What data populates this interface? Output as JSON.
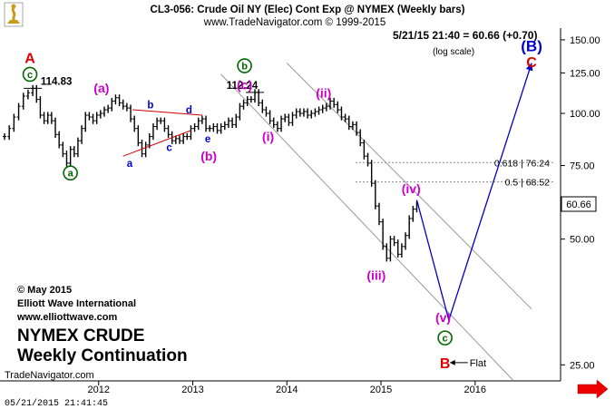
{
  "header": {
    "title": "CL3-056:  Crude Oil NY (Elec) Cont Exp @ NYMEX  (Weekly bars)",
    "copyright": "www.TradeNavigator.com © 1999-2015",
    "last_quote": "5/21/15 21:40 = 60.66 (+0.70)",
    "scale_note": "(log scale)"
  },
  "price_tag": "60.66",
  "footer": {
    "watermark": "TradeNavigator.com",
    "timestamp": "05/21/2015 21:41:45"
  },
  "credits": {
    "line1": "© May 2015",
    "line2": "Elliott Wave International",
    "line3": "www.elliottwave.com"
  },
  "caption": {
    "line1": "NYMEX CRUDE",
    "line2": "Weekly Continuation"
  },
  "colors": {
    "price_bars": "#000000",
    "projection": "#0000cc",
    "channel": "#999999",
    "triangle": "#cc0000",
    "green_label": "#006600",
    "magenta_label": "#cc00cc",
    "blue_label": "#0000cc",
    "red_label": "#dd0000",
    "nav_arrow": "#ee0000"
  },
  "chart_data": {
    "type": "line",
    "title": "CL3-056:  Crude Oil NY (Elec) Cont Exp @ NYMEX  (Weekly bars)",
    "log_scale": true,
    "ylim": [
      23,
      160
    ],
    "xlim": [
      2011.0,
      2016.85
    ],
    "y_ticks": [
      {
        "value": 150,
        "label": "150.00"
      },
      {
        "value": 125,
        "label": "125.00"
      },
      {
        "value": 100,
        "label": "100.00"
      },
      {
        "value": 75,
        "label": "75.00"
      },
      {
        "value": 50,
        "label": "50.00"
      },
      {
        "value": 25,
        "label": "25.00"
      }
    ],
    "x_ticks": [
      {
        "value": 2012,
        "label": "2012"
      },
      {
        "value": 2013,
        "label": "2013"
      },
      {
        "value": 2014,
        "label": "2014"
      },
      {
        "value": 2015,
        "label": "2015"
      },
      {
        "value": 2016,
        "label": "2016"
      }
    ],
    "series": [
      {
        "values": [
          [
            2011.0,
            88
          ],
          [
            2011.05,
            92
          ],
          [
            2011.1,
            98
          ],
          [
            2011.15,
            104
          ],
          [
            2011.2,
            110
          ],
          [
            2011.25,
            112
          ],
          [
            2011.3,
            114.83
          ],
          [
            2011.34,
            108
          ],
          [
            2011.38,
            99
          ],
          [
            2011.42,
            96
          ],
          [
            2011.46,
            99
          ],
          [
            2011.5,
            96
          ],
          [
            2011.54,
            89
          ],
          [
            2011.58,
            84
          ],
          [
            2011.62,
            80
          ],
          [
            2011.66,
            76
          ],
          [
            2011.7,
            82
          ],
          [
            2011.74,
            80
          ],
          [
            2011.78,
            86
          ],
          [
            2011.82,
            92
          ],
          [
            2011.86,
            99
          ],
          [
            2011.9,
            98
          ],
          [
            2011.94,
            96
          ],
          [
            2011.98,
            99
          ],
          [
            2012.02,
            100
          ],
          [
            2012.06,
            102
          ],
          [
            2012.1,
            103
          ],
          [
            2012.14,
            107
          ],
          [
            2012.18,
            109
          ],
          [
            2012.22,
            106
          ],
          [
            2012.26,
            104
          ],
          [
            2012.3,
            103
          ],
          [
            2012.34,
            97
          ],
          [
            2012.38,
            92
          ],
          [
            2012.42,
            85
          ],
          [
            2012.46,
            80
          ],
          [
            2012.5,
            84
          ],
          [
            2012.54,
            88
          ],
          [
            2012.58,
            93
          ],
          [
            2012.62,
            96
          ],
          [
            2012.66,
            96
          ],
          [
            2012.7,
            92
          ],
          [
            2012.74,
            89
          ],
          [
            2012.78,
            86
          ],
          [
            2012.82,
            87
          ],
          [
            2012.86,
            86
          ],
          [
            2012.9,
            88
          ],
          [
            2012.94,
            88
          ],
          [
            2012.98,
            92
          ],
          [
            2013.02,
            93
          ],
          [
            2013.06,
            96
          ],
          [
            2013.1,
            97
          ],
          [
            2013.14,
            92
          ],
          [
            2013.18,
            92
          ],
          [
            2013.22,
            93
          ],
          [
            2013.26,
            91
          ],
          [
            2013.3,
            93
          ],
          [
            2013.34,
            94
          ],
          [
            2013.38,
            96
          ],
          [
            2013.42,
            94
          ],
          [
            2013.46,
            98
          ],
          [
            2013.5,
            104
          ],
          [
            2013.54,
            106
          ],
          [
            2013.58,
            108
          ],
          [
            2013.62,
            108
          ],
          [
            2013.66,
            112.24
          ],
          [
            2013.7,
            106
          ],
          [
            2013.74,
            102
          ],
          [
            2013.78,
            100
          ],
          [
            2013.82,
            96
          ],
          [
            2013.86,
            94
          ],
          [
            2013.9,
            92
          ],
          [
            2013.94,
            97
          ],
          [
            2013.98,
            98
          ],
          [
            2014.02,
            95
          ],
          [
            2014.06,
            99
          ],
          [
            2014.1,
            101
          ],
          [
            2014.14,
            100
          ],
          [
            2014.18,
            101
          ],
          [
            2014.22,
            99
          ],
          [
            2014.26,
            100
          ],
          [
            2014.3,
            101
          ],
          [
            2014.34,
            102
          ],
          [
            2014.38,
            103
          ],
          [
            2014.42,
            104
          ],
          [
            2014.46,
            107
          ],
          [
            2014.5,
            105
          ],
          [
            2014.54,
            102
          ],
          [
            2014.58,
            98
          ],
          [
            2014.62,
            97
          ],
          [
            2014.66,
            93
          ],
          [
            2014.7,
            94
          ],
          [
            2014.74,
            90
          ],
          [
            2014.78,
            85
          ],
          [
            2014.82,
            79
          ],
          [
            2014.86,
            76
          ],
          [
            2014.9,
            68
          ],
          [
            2014.94,
            60
          ],
          [
            2014.98,
            55
          ],
          [
            2015.02,
            48
          ],
          [
            2015.06,
            45
          ],
          [
            2015.1,
            50
          ],
          [
            2015.14,
            49
          ],
          [
            2015.18,
            46
          ],
          [
            2015.22,
            48
          ],
          [
            2015.26,
            51
          ],
          [
            2015.3,
            56
          ],
          [
            2015.34,
            59
          ],
          [
            2015.38,
            60.66
          ]
        ]
      }
    ],
    "projection": [
      [
        2015.38,
        62
      ],
      [
        2015.72,
        32
      ],
      [
        2016.6,
        132
      ]
    ],
    "channel": [
      [
        [
          2014.0,
          132
        ],
        [
          2016.6,
          34
        ]
      ],
      [
        [
          2013.3,
          124
        ],
        [
          2016.4,
          23
        ]
      ]
    ],
    "triangle": [
      [
        [
          2012.26,
          79
        ],
        [
          2012.98,
          91
        ]
      ],
      [
        [
          2012.36,
          102
        ],
        [
          2013.1,
          99
        ]
      ]
    ],
    "fib_levels": [
      {
        "value": 76.24,
        "label": "0.618 | 76.24"
      },
      {
        "value": 68.52,
        "label": "0.5 | 68.52"
      }
    ],
    "price_annotations": [
      {
        "label": "114.83",
        "x": 2011.3,
        "y": 114.83
      },
      {
        "label": "112.24",
        "x": 2013.66,
        "y": 112.24
      }
    ],
    "wave_labels": [
      {
        "label": "A",
        "x": 2011.27,
        "y": 136,
        "kind": "plain-red"
      },
      {
        "label": "c",
        "x": 2011.27,
        "y": 124,
        "kind": "circle-green"
      },
      {
        "label": "a",
        "x": 2011.7,
        "y": 72,
        "kind": "circle-green"
      },
      {
        "label": "(a)",
        "x": 2012.03,
        "y": 115,
        "kind": "paren-magenta"
      },
      {
        "label": "b",
        "x": 2012.55,
        "y": 105,
        "kind": "small-blue"
      },
      {
        "label": "a",
        "x": 2012.33,
        "y": 76,
        "kind": "small-blue"
      },
      {
        "label": "c",
        "x": 2012.75,
        "y": 83,
        "kind": "small-blue"
      },
      {
        "label": "d",
        "x": 2012.96,
        "y": 102,
        "kind": "small-blue"
      },
      {
        "label": "e",
        "x": 2013.16,
        "y": 87,
        "kind": "small-blue"
      },
      {
        "label": "(b)",
        "x": 2013.17,
        "y": 79,
        "kind": "paren-magenta"
      },
      {
        "label": "b",
        "x": 2013.55,
        "y": 130,
        "kind": "circle-green"
      },
      {
        "label": "(c)",
        "x": 2013.55,
        "y": 117,
        "kind": "paren-magenta"
      },
      {
        "label": "(i)",
        "x": 2013.8,
        "y": 88,
        "kind": "paren-magenta"
      },
      {
        "label": "(ii)",
        "x": 2014.39,
        "y": 112,
        "kind": "paren-magenta"
      },
      {
        "label": "(iii)",
        "x": 2014.95,
        "y": 41,
        "kind": "paren-magenta"
      },
      {
        "label": "(iv)",
        "x": 2015.32,
        "y": 66,
        "kind": "paren-magenta"
      },
      {
        "label": "(v)",
        "x": 2015.66,
        "y": 32.5,
        "kind": "paren-magenta"
      },
      {
        "label": "c",
        "x": 2015.68,
        "y": 29,
        "kind": "circle-green"
      },
      {
        "label": "B",
        "x": 2015.68,
        "y": 25.3,
        "kind": "plain-red"
      },
      {
        "label": "(B)",
        "x": 2016.6,
        "y": 145,
        "kind": "paren-blue"
      },
      {
        "label": "C",
        "x": 2016.6,
        "y": 133,
        "kind": "plain-red"
      }
    ],
    "flat_note": {
      "label": "Flat",
      "x": 2015.98,
      "y": 25.3
    }
  }
}
